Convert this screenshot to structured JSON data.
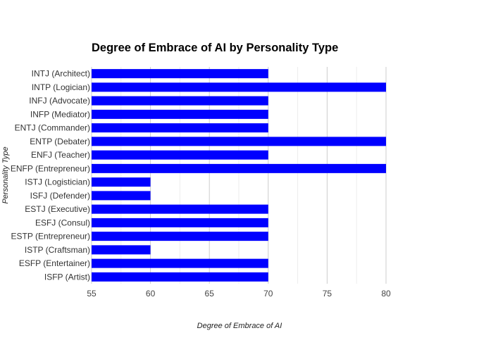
{
  "chart_data": {
    "type": "bar",
    "orientation": "horizontal",
    "title": "Degree of Embrace of AI by Personality Type",
    "xlabel": "Degree of Embrace of AI",
    "ylabel": "Personality Type",
    "xlim": [
      55,
      80
    ],
    "xticks": [
      "55",
      "60",
      "65",
      "70",
      "75",
      "80"
    ],
    "grid": true,
    "bar_color": "#0000ff",
    "categories": [
      "INTJ (Architect)",
      "INTP (Logician)",
      "INFJ (Advocate)",
      "INFP (Mediator)",
      "ENTJ (Commander)",
      "ENTP (Debater)",
      "ENFJ (Teacher)",
      "ENFP (Entrepreneur)",
      "ISTJ (Logistician)",
      "ISFJ (Defender)",
      "ESTJ (Executive)",
      "ESFJ (Consul)",
      "ESTP (Entrepreneur)",
      "ISTP (Craftsman)",
      "ESFP (Entertainer)",
      "ISFP (Artist)"
    ],
    "values": [
      70,
      80,
      70,
      70,
      70,
      80,
      70,
      80,
      60,
      60,
      70,
      70,
      70,
      60,
      70,
      70
    ]
  }
}
